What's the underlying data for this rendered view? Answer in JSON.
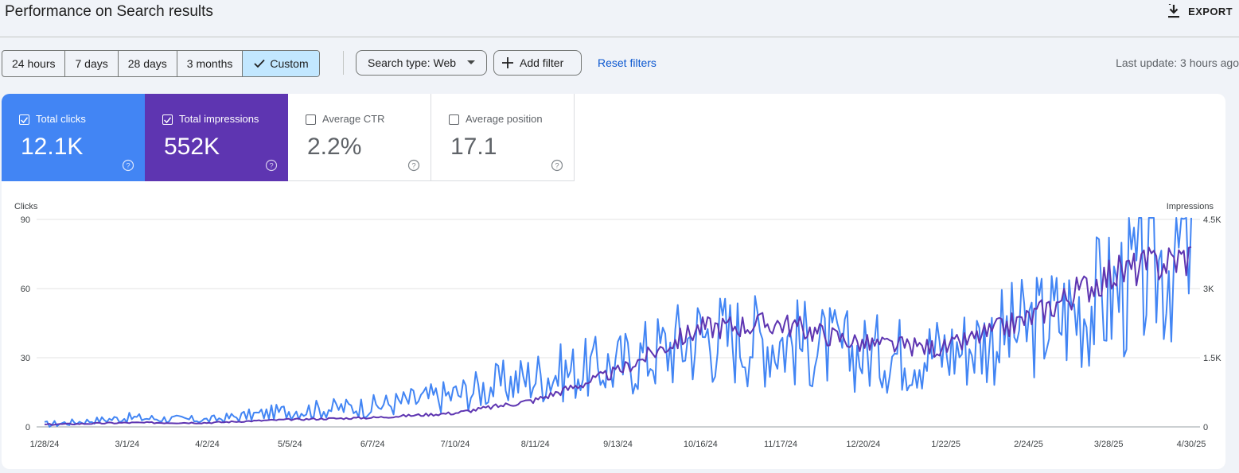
{
  "header": {
    "title": "Performance on Search results",
    "export_label": "EXPORT"
  },
  "toolbar": {
    "ranges": [
      "24 hours",
      "7 days",
      "28 days",
      "3 months",
      "Custom"
    ],
    "active_range": "Custom",
    "search_type": "Search type: Web",
    "add_filter": "Add filter",
    "reset_filters": "Reset filters",
    "last_update": "Last update: 3 hours ago"
  },
  "metrics": [
    {
      "label": "Total clicks",
      "value": "12.1K",
      "checked": true,
      "color": "#4285f4"
    },
    {
      "label": "Total impressions",
      "value": "552K",
      "checked": true,
      "color": "#5e35b1"
    },
    {
      "label": "Average CTR",
      "value": "2.2%",
      "checked": false
    },
    {
      "label": "Average position",
      "value": "17.1",
      "checked": false
    }
  ],
  "chart_data": {
    "type": "line",
    "left_axis_label": "Clicks",
    "right_axis_label": "Impressions",
    "left_ticks": [
      "0",
      "30",
      "60",
      "90"
    ],
    "right_ticks": [
      "0",
      "1.5K",
      "3K",
      "4.5K"
    ],
    "left_range": [
      0,
      90
    ],
    "right_range": [
      0,
      4500
    ],
    "x_labels": [
      "1/28/24",
      "3/1/24",
      "4/2/24",
      "5/5/24",
      "6/7/24",
      "7/10/24",
      "8/11/24",
      "9/13/24",
      "10/16/24",
      "11/17/24",
      "12/20/24",
      "1/22/25",
      "2/24/25",
      "3/28/25",
      "4/30/25"
    ],
    "grid": "horizontal",
    "series": [
      {
        "name": "Clicks",
        "axis": "left",
        "color": "#4285f4",
        "points": [
          [
            "1/28/24",
            1
          ],
          [
            "3/1/24",
            4
          ],
          [
            "4/2/24",
            3
          ],
          [
            "5/5/24",
            7
          ],
          [
            "6/7/24",
            9
          ],
          [
            "7/10/24",
            14
          ],
          [
            "8/11/24",
            22
          ],
          [
            "9/13/24",
            27
          ],
          [
            "10/16/24",
            40
          ],
          [
            "11/17/24",
            38
          ],
          [
            "12/20/24",
            32
          ],
          [
            "1/22/25",
            33
          ],
          [
            "2/24/25",
            43
          ],
          [
            "3/28/25",
            57
          ],
          [
            "4/30/25",
            80
          ]
        ]
      },
      {
        "name": "Impressions",
        "axis": "right",
        "color": "#5e35b1",
        "points": [
          [
            "1/28/24",
            50
          ],
          [
            "3/1/24",
            90
          ],
          [
            "4/2/24",
            90
          ],
          [
            "5/5/24",
            160
          ],
          [
            "6/7/24",
            200
          ],
          [
            "7/10/24",
            300
          ],
          [
            "8/11/24",
            580
          ],
          [
            "9/13/24",
            1200
          ],
          [
            "10/16/24",
            2150
          ],
          [
            "11/17/24",
            2250
          ],
          [
            "12/20/24",
            1800
          ],
          [
            "1/22/25",
            1700
          ],
          [
            "2/24/25",
            2350
          ],
          [
            "3/28/25",
            3300
          ],
          [
            "4/30/25",
            3700
          ]
        ]
      }
    ]
  }
}
